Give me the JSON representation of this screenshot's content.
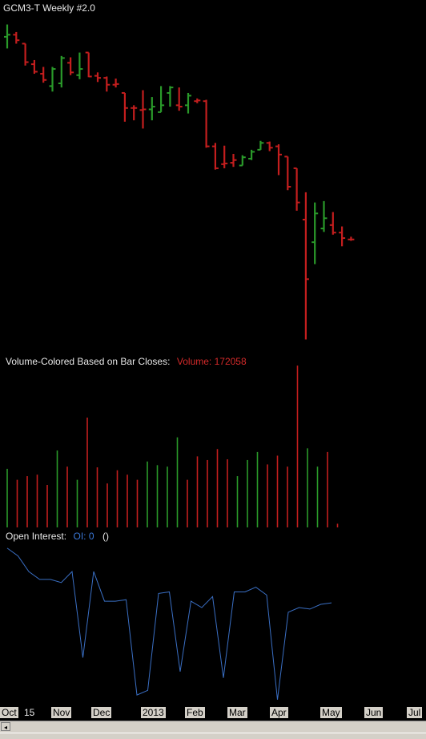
{
  "header": {
    "title": "GCM3-T  Weekly  #2.0"
  },
  "volume_panel": {
    "label": "Volume-Colored Based on Bar Closes:",
    "value_label": "Volume: 172058"
  },
  "oi_panel": {
    "label": "Open Interest:",
    "value_label": "OI: 0",
    "extra": "()"
  },
  "colors": {
    "up": "#2a9a2a",
    "down": "#c41e1e",
    "oi_line": "#3a6fc4",
    "text": "#e8e8e8"
  },
  "chart_data": [
    {
      "type": "ohlc",
      "title": "GCM3-T  Weekly  #2.0",
      "x_ticks": [
        "Oct",
        "15",
        "Nov",
        "Dec",
        "2013",
        "Feb",
        "Mar",
        "Apr",
        "May",
        "Jun",
        "Jul"
      ],
      "ylim": [
        1320,
        1800
      ],
      "bars": [
        {
          "o": 1772,
          "h": 1790,
          "l": 1755,
          "c": 1775,
          "dir": "up"
        },
        {
          "o": 1775,
          "h": 1779,
          "l": 1762,
          "c": 1767,
          "dir": "down"
        },
        {
          "o": 1762,
          "h": 1762,
          "l": 1730,
          "c": 1735,
          "dir": "down"
        },
        {
          "o": 1732,
          "h": 1738,
          "l": 1718,
          "c": 1721,
          "dir": "down"
        },
        {
          "o": 1718,
          "h": 1728,
          "l": 1705,
          "c": 1709,
          "dir": "down"
        },
        {
          "o": 1700,
          "h": 1728,
          "l": 1692,
          "c": 1725,
          "dir": "up"
        },
        {
          "o": 1704,
          "h": 1744,
          "l": 1698,
          "c": 1741,
          "dir": "up"
        },
        {
          "o": 1734,
          "h": 1742,
          "l": 1716,
          "c": 1720,
          "dir": "down"
        },
        {
          "o": 1716,
          "h": 1749,
          "l": 1710,
          "c": 1725,
          "dir": "up"
        },
        {
          "o": 1749,
          "h": 1749,
          "l": 1713,
          "c": 1714,
          "dir": "down"
        },
        {
          "o": 1715,
          "h": 1720,
          "l": 1706,
          "c": 1712,
          "dir": "down"
        },
        {
          "o": 1712,
          "h": 1714,
          "l": 1692,
          "c": 1702,
          "dir": "down"
        },
        {
          "o": 1702,
          "h": 1711,
          "l": 1698,
          "c": 1703,
          "dir": "down"
        },
        {
          "o": 1690,
          "h": 1690,
          "l": 1648,
          "c": 1668,
          "dir": "down"
        },
        {
          "o": 1668,
          "h": 1672,
          "l": 1650,
          "c": 1668,
          "dir": "down"
        },
        {
          "o": 1665,
          "h": 1694,
          "l": 1638,
          "c": 1666,
          "dir": "down"
        },
        {
          "o": 1666,
          "h": 1684,
          "l": 1650,
          "c": 1670,
          "dir": "up"
        },
        {
          "o": 1662,
          "h": 1700,
          "l": 1662,
          "c": 1672,
          "dir": "up"
        },
        {
          "o": 1690,
          "h": 1700,
          "l": 1670,
          "c": 1698,
          "dir": "up"
        },
        {
          "o": 1672,
          "h": 1698,
          "l": 1664,
          "c": 1670,
          "dir": "down"
        },
        {
          "o": 1672,
          "h": 1690,
          "l": 1660,
          "c": 1686,
          "dir": "up"
        },
        {
          "o": 1678,
          "h": 1682,
          "l": 1675,
          "c": 1679,
          "dir": "down"
        },
        {
          "o": 1678,
          "h": 1680,
          "l": 1610,
          "c": 1612,
          "dir": "down"
        },
        {
          "o": 1612,
          "h": 1617,
          "l": 1578,
          "c": 1580,
          "dir": "down"
        },
        {
          "o": 1586,
          "h": 1613,
          "l": 1580,
          "c": 1587,
          "dir": "down"
        },
        {
          "o": 1588,
          "h": 1601,
          "l": 1582,
          "c": 1592,
          "dir": "down"
        },
        {
          "o": 1584,
          "h": 1599,
          "l": 1584,
          "c": 1596,
          "dir": "up"
        },
        {
          "o": 1594,
          "h": 1607,
          "l": 1592,
          "c": 1604,
          "dir": "up"
        },
        {
          "o": 1607,
          "h": 1620,
          "l": 1607,
          "c": 1617,
          "dir": "up"
        },
        {
          "o": 1617,
          "h": 1619,
          "l": 1605,
          "c": 1610,
          "dir": "down"
        },
        {
          "o": 1612,
          "h": 1615,
          "l": 1570,
          "c": 1600,
          "dir": "down"
        },
        {
          "o": 1597,
          "h": 1597,
          "l": 1548,
          "c": 1553,
          "dir": "down"
        },
        {
          "o": 1580,
          "h": 1580,
          "l": 1518,
          "c": 1530,
          "dir": "down"
        },
        {
          "o": 1505,
          "h": 1545,
          "l": 1330,
          "c": 1418,
          "dir": "down"
        },
        {
          "o": 1472,
          "h": 1530,
          "l": 1440,
          "c": 1514,
          "dir": "up"
        },
        {
          "o": 1492,
          "h": 1532,
          "l": 1487,
          "c": 1507,
          "dir": "up"
        },
        {
          "o": 1497,
          "h": 1516,
          "l": 1483,
          "c": 1486,
          "dir": "down"
        },
        {
          "o": 1486,
          "h": 1495,
          "l": 1466,
          "c": 1478,
          "dir": "down"
        },
        {
          "o": 1476,
          "h": 1480,
          "l": 1474,
          "c": 1476,
          "dir": "down"
        }
      ]
    },
    {
      "type": "bar",
      "title": "Volume-Colored Based on Bar Closes:",
      "current_value": 172058,
      "ylim": [
        0,
        220000
      ],
      "values": [
        {
          "v": 80000,
          "dir": "up"
        },
        {
          "v": 65000,
          "dir": "down"
        },
        {
          "v": 70000,
          "dir": "down"
        },
        {
          "v": 72000,
          "dir": "down"
        },
        {
          "v": 58000,
          "dir": "down"
        },
        {
          "v": 105000,
          "dir": "up"
        },
        {
          "v": 83000,
          "dir": "down"
        },
        {
          "v": 65000,
          "dir": "up"
        },
        {
          "v": 150000,
          "dir": "down"
        },
        {
          "v": 82000,
          "dir": "down"
        },
        {
          "v": 60000,
          "dir": "down"
        },
        {
          "v": 78000,
          "dir": "down"
        },
        {
          "v": 72000,
          "dir": "down"
        },
        {
          "v": 65000,
          "dir": "down"
        },
        {
          "v": 90000,
          "dir": "up"
        },
        {
          "v": 85000,
          "dir": "up"
        },
        {
          "v": 83000,
          "dir": "up"
        },
        {
          "v": 123000,
          "dir": "up"
        },
        {
          "v": 65000,
          "dir": "down"
        },
        {
          "v": 97000,
          "dir": "down"
        },
        {
          "v": 92000,
          "dir": "down"
        },
        {
          "v": 107000,
          "dir": "down"
        },
        {
          "v": 93000,
          "dir": "down"
        },
        {
          "v": 70000,
          "dir": "up"
        },
        {
          "v": 92000,
          "dir": "up"
        },
        {
          "v": 103000,
          "dir": "up"
        },
        {
          "v": 86000,
          "dir": "down"
        },
        {
          "v": 98000,
          "dir": "down"
        },
        {
          "v": 83000,
          "dir": "down"
        },
        {
          "v": 221000,
          "dir": "down"
        },
        {
          "v": 108000,
          "dir": "up"
        },
        {
          "v": 83000,
          "dir": "up"
        },
        {
          "v": 103000,
          "dir": "down"
        },
        {
          "v": 5000,
          "dir": "down"
        }
      ]
    },
    {
      "type": "line",
      "title": "Open Interest:",
      "current_value": 0,
      "ylim": [
        0,
        100
      ],
      "values": [
        97,
        92,
        82,
        77,
        77,
        75,
        82,
        27,
        82,
        63,
        63,
        64,
        3,
        6,
        68,
        69,
        18,
        63,
        59,
        66,
        14,
        69,
        69,
        72,
        67,
        0,
        56,
        59,
        58,
        61,
        62
      ]
    }
  ],
  "x_axis": {
    "ticks": [
      "Oct",
      "15",
      "Nov",
      "Dec",
      "2013",
      "Feb",
      "Mar",
      "Apr",
      "May",
      "Jun",
      "Jul"
    ]
  },
  "scrollbar": {
    "left_arrow": "◂"
  }
}
